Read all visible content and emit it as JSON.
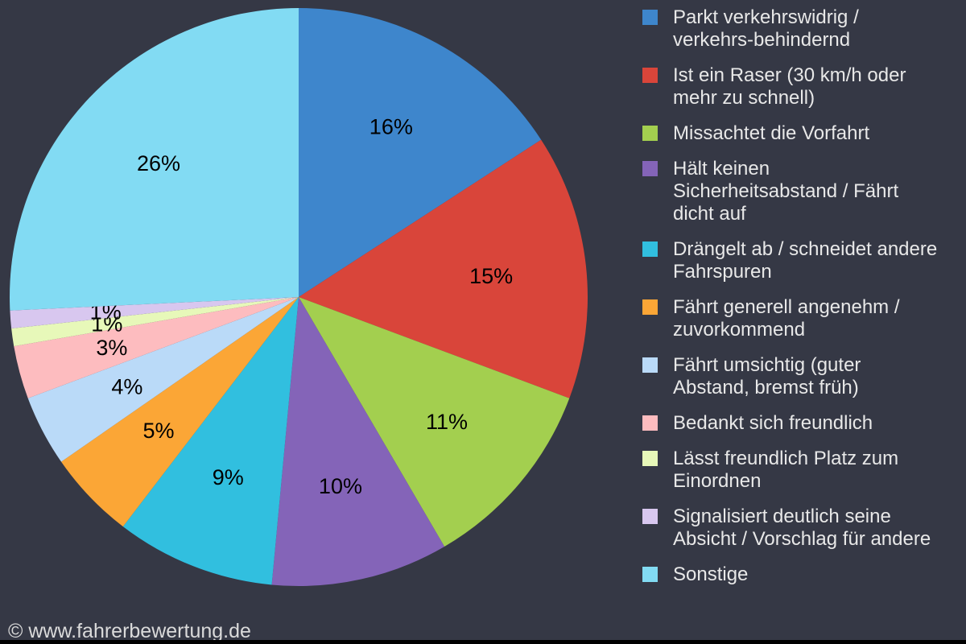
{
  "page": {
    "background_color": "#353845",
    "bottom_bar_color": "#000000"
  },
  "footer": {
    "text": "© www.fahrerbewertung.de"
  },
  "chart_data": {
    "type": "pie",
    "title": "",
    "unit": "%",
    "start_angle_deg": 0,
    "direction": "clockwise",
    "labels_show": "percent-on-slice",
    "legend_position": "right",
    "label_color": "#000000",
    "slices": [
      {
        "label": "Parkt verkehrswidrig /\nverkehrs-behindernd",
        "value": 16,
        "color": "#3e86cc"
      },
      {
        "label": "Ist ein Raser (30 km/h oder\nmehr zu schnell)",
        "value": 15,
        "color": "#d9453a"
      },
      {
        "label": "Missachtet die Vorfahrt",
        "value": 11,
        "color": "#a3cf4f"
      },
      {
        "label": "Hält keinen\nSicherheitsabstand / Fährt\ndicht auf",
        "value": 10,
        "color": "#8464b8"
      },
      {
        "label": "Drängelt ab / schneidet andere\nFahrspuren",
        "value": 9,
        "color": "#31bfdf"
      },
      {
        "label": "Fährt generell angenehm /\nzuvorkommend",
        "value": 5,
        "color": "#fba636"
      },
      {
        "label": "Fährt umsichtig (guter\nAbstand, bremst früh)",
        "value": 4,
        "color": "#badaf8"
      },
      {
        "label": "Bedankt sich freundlich",
        "value": 3,
        "color": "#fdbcbf"
      },
      {
        "label": "Lässt freundlich Platz zum\nEinordnen",
        "value": 1,
        "color": "#e7f8b9"
      },
      {
        "label": "Signalisiert deutlich seine\nAbsicht / Vorschlag für andere",
        "value": 1,
        "color": "#d8c7ef"
      },
      {
        "label": "Sonstige",
        "value": 26,
        "color": "#82dbf3"
      }
    ]
  }
}
